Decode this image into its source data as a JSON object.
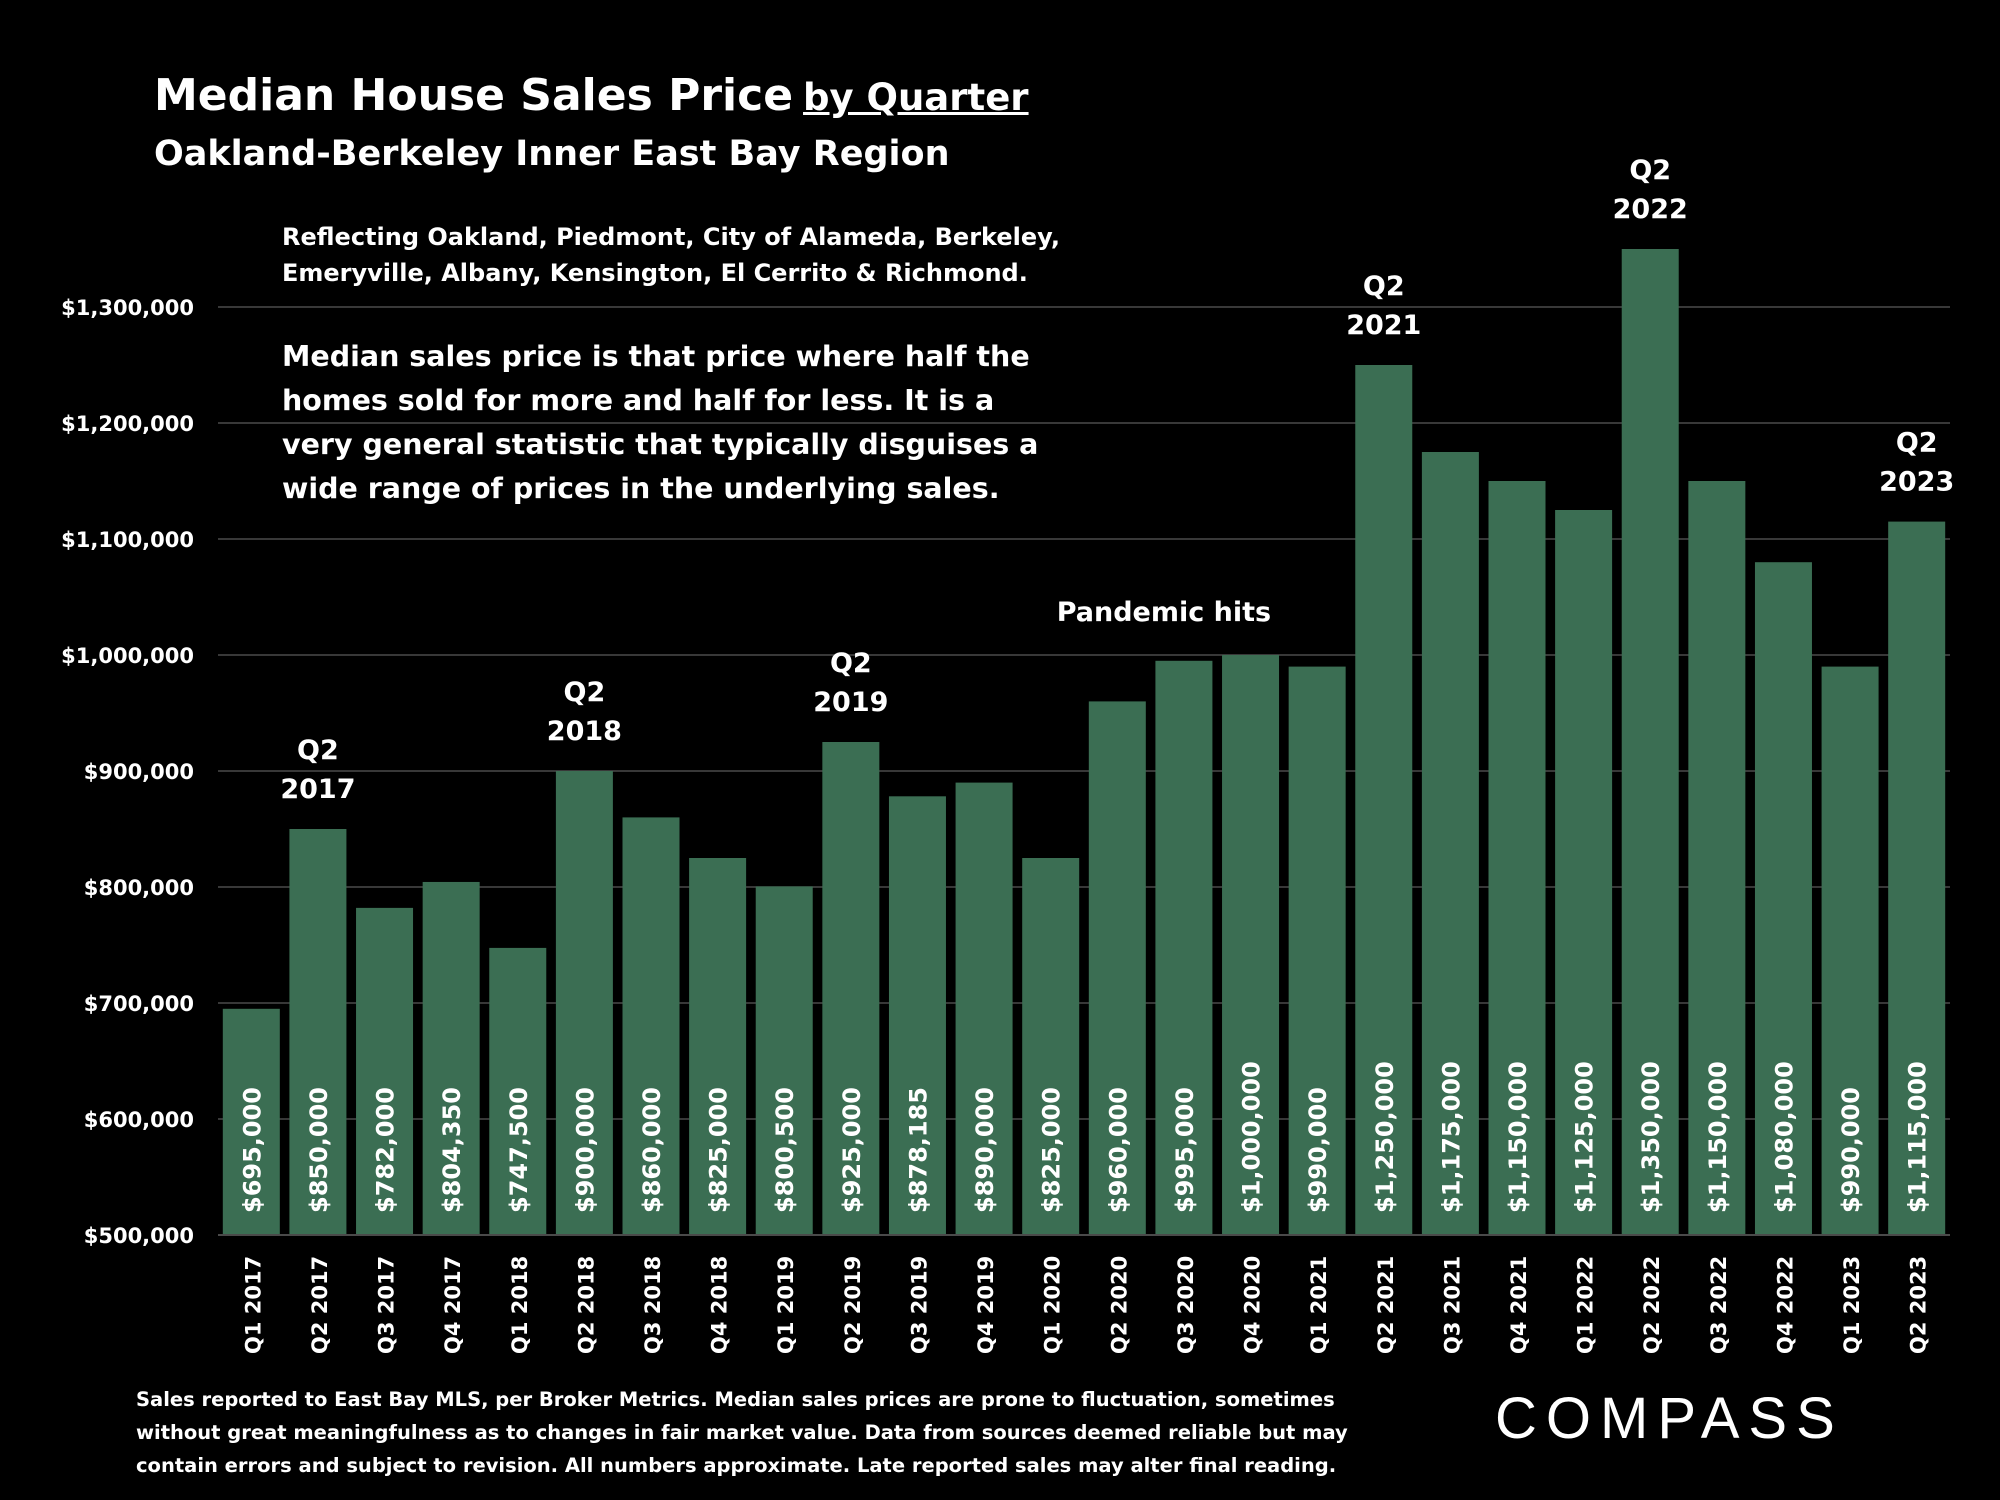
{
  "header": {
    "title": "Median House Sales Price",
    "title_suffix": "by Quarter",
    "subtitle": "Oakland-Berkeley Inner East Bay Region"
  },
  "notes": {
    "region_line1": "Reflecting Oakland, Piedmont, City of Alameda, Berkeley,",
    "region_line2": "Emeryville, Albany, Kensington, El Cerrito & Richmond.",
    "definition_line1": "Median sales price is that price where half the",
    "definition_line2": "homes sold for more and half for less. It is a",
    "definition_line3": "very general statistic that typically disguises a",
    "definition_line4": "wide range of prices in the underlying sales."
  },
  "footer": {
    "disclaimer_line1": "Sales reported to East Bay MLS, per Broker Metrics. Median sales prices are prone to fluctuation, sometimes",
    "disclaimer_line2": "without great meaningfulness as to changes in fair market value. Data from sources deemed reliable but may",
    "disclaimer_line3": "contain errors and subject to revision. All numbers approximate. Late reported sales may alter final reading.",
    "logo": "COMPASS"
  },
  "colors": {
    "background": "#000000",
    "bar": "#3b6e53",
    "text": "#ffffff",
    "gridline": "#4a4a4a"
  },
  "chart_data": {
    "type": "bar",
    "ylim": [
      500000,
      1350000
    ],
    "y_ticks": [
      500000,
      600000,
      700000,
      800000,
      900000,
      1000000,
      1100000,
      1200000,
      1300000
    ],
    "y_tick_labels": [
      "$500,000",
      "$600,000",
      "$700,000",
      "$800,000",
      "$900,000",
      "$1,000,000",
      "$1,100,000",
      "$1,200,000",
      "$1,300,000"
    ],
    "grid": true,
    "categories": [
      "Q1 2017",
      "Q2 2017",
      "Q3 2017",
      "Q4 2017",
      "Q1 2018",
      "Q2 2018",
      "Q3 2018",
      "Q4 2018",
      "Q1 2019",
      "Q2 2019",
      "Q3 2019",
      "Q4 2019",
      "Q1 2020",
      "Q2 2020",
      "Q3 2020",
      "Q4 2020",
      "Q1 2021",
      "Q2 2021",
      "Q3 2021",
      "Q4 2021",
      "Q1 2022",
      "Q2 2022",
      "Q3 2022",
      "Q4 2022",
      "Q1 2023",
      "Q2 2023"
    ],
    "values": [
      695000,
      850000,
      782000,
      804350,
      747500,
      900000,
      860000,
      825000,
      800500,
      925000,
      878185,
      890000,
      825000,
      960000,
      995000,
      1000000,
      990000,
      1250000,
      1175000,
      1150000,
      1125000,
      1350000,
      1150000,
      1080000,
      990000,
      1115000
    ],
    "value_labels": [
      "$695,000",
      "$850,000",
      "$782,000",
      "$804,350",
      "$747,500",
      "$900,000",
      "$860,000",
      "$825,000",
      "$800,500",
      "$925,000",
      "$878,185",
      "$890,000",
      "$825,000",
      "$960,000",
      "$995,000",
      "$1,000,000",
      "$990,000",
      "$1,250,000",
      "$1,175,000",
      "$1,150,000",
      "$1,125,000",
      "$1,350,000",
      "$1,150,000",
      "$1,080,000",
      "$990,000",
      "$1,115,000"
    ],
    "annotations": [
      {
        "category": "Q2 2017",
        "line1": "Q2",
        "line2": "2017"
      },
      {
        "category": "Q2 2018",
        "line1": "Q2",
        "line2": "2018"
      },
      {
        "category": "Q2 2019",
        "line1": "Q2",
        "line2": "2019"
      },
      {
        "category": "Q2 2021",
        "line1": "Q2",
        "line2": "2021"
      },
      {
        "category": "Q2 2022",
        "line1": "Q2",
        "line2": "2022"
      },
      {
        "category": "Q2 2023",
        "line1": "Q2",
        "line2": "2023"
      },
      {
        "category": "Q3 2020",
        "line1": "Pandemic hits",
        "line2": ""
      }
    ]
  }
}
